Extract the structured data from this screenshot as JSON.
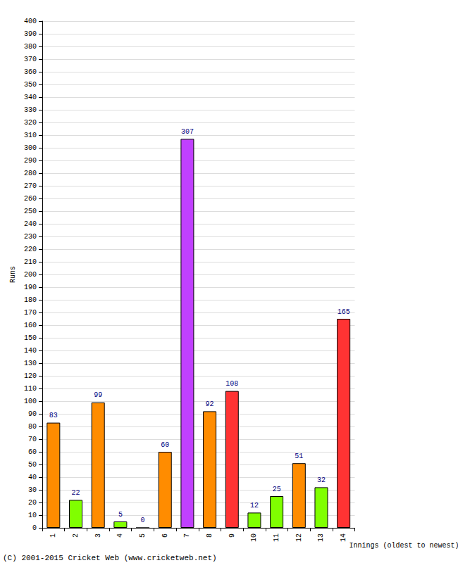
{
  "chart_data": {
    "type": "bar",
    "y_label": "Runs",
    "x_label": "Innings (oldest to newest)",
    "annotations": [
      "(C) 2001-2015 Cricket Web (www.cricketweb.net)"
    ],
    "categories": [
      "1",
      "2",
      "3",
      "4",
      "5",
      "6",
      "7",
      "8",
      "9",
      "10",
      "11",
      "12",
      "13",
      "14"
    ],
    "values": [
      83,
      22,
      99,
      5,
      0,
      60,
      307,
      92,
      108,
      12,
      25,
      51,
      32,
      165
    ],
    "colors": [
      "#ff8c00",
      "#80ff00",
      "#ff8c00",
      "#80ff00",
      "#80ff00",
      "#ff8c00",
      "#c040ff",
      "#ff8c00",
      "#ff3333",
      "#80ff00",
      "#80ff00",
      "#ff8c00",
      "#80ff00",
      "#ff3333"
    ],
    "ylim": [
      0,
      400
    ],
    "yticks": [
      0,
      10,
      20,
      30,
      40,
      50,
      60,
      70,
      80,
      90,
      100,
      110,
      120,
      130,
      140,
      150,
      160,
      170,
      180,
      190,
      200,
      210,
      220,
      230,
      240,
      250,
      260,
      270,
      280,
      290,
      300,
      310,
      320,
      330,
      340,
      350,
      360,
      370,
      380,
      390,
      400
    ],
    "grid": true,
    "data_labels": true
  }
}
